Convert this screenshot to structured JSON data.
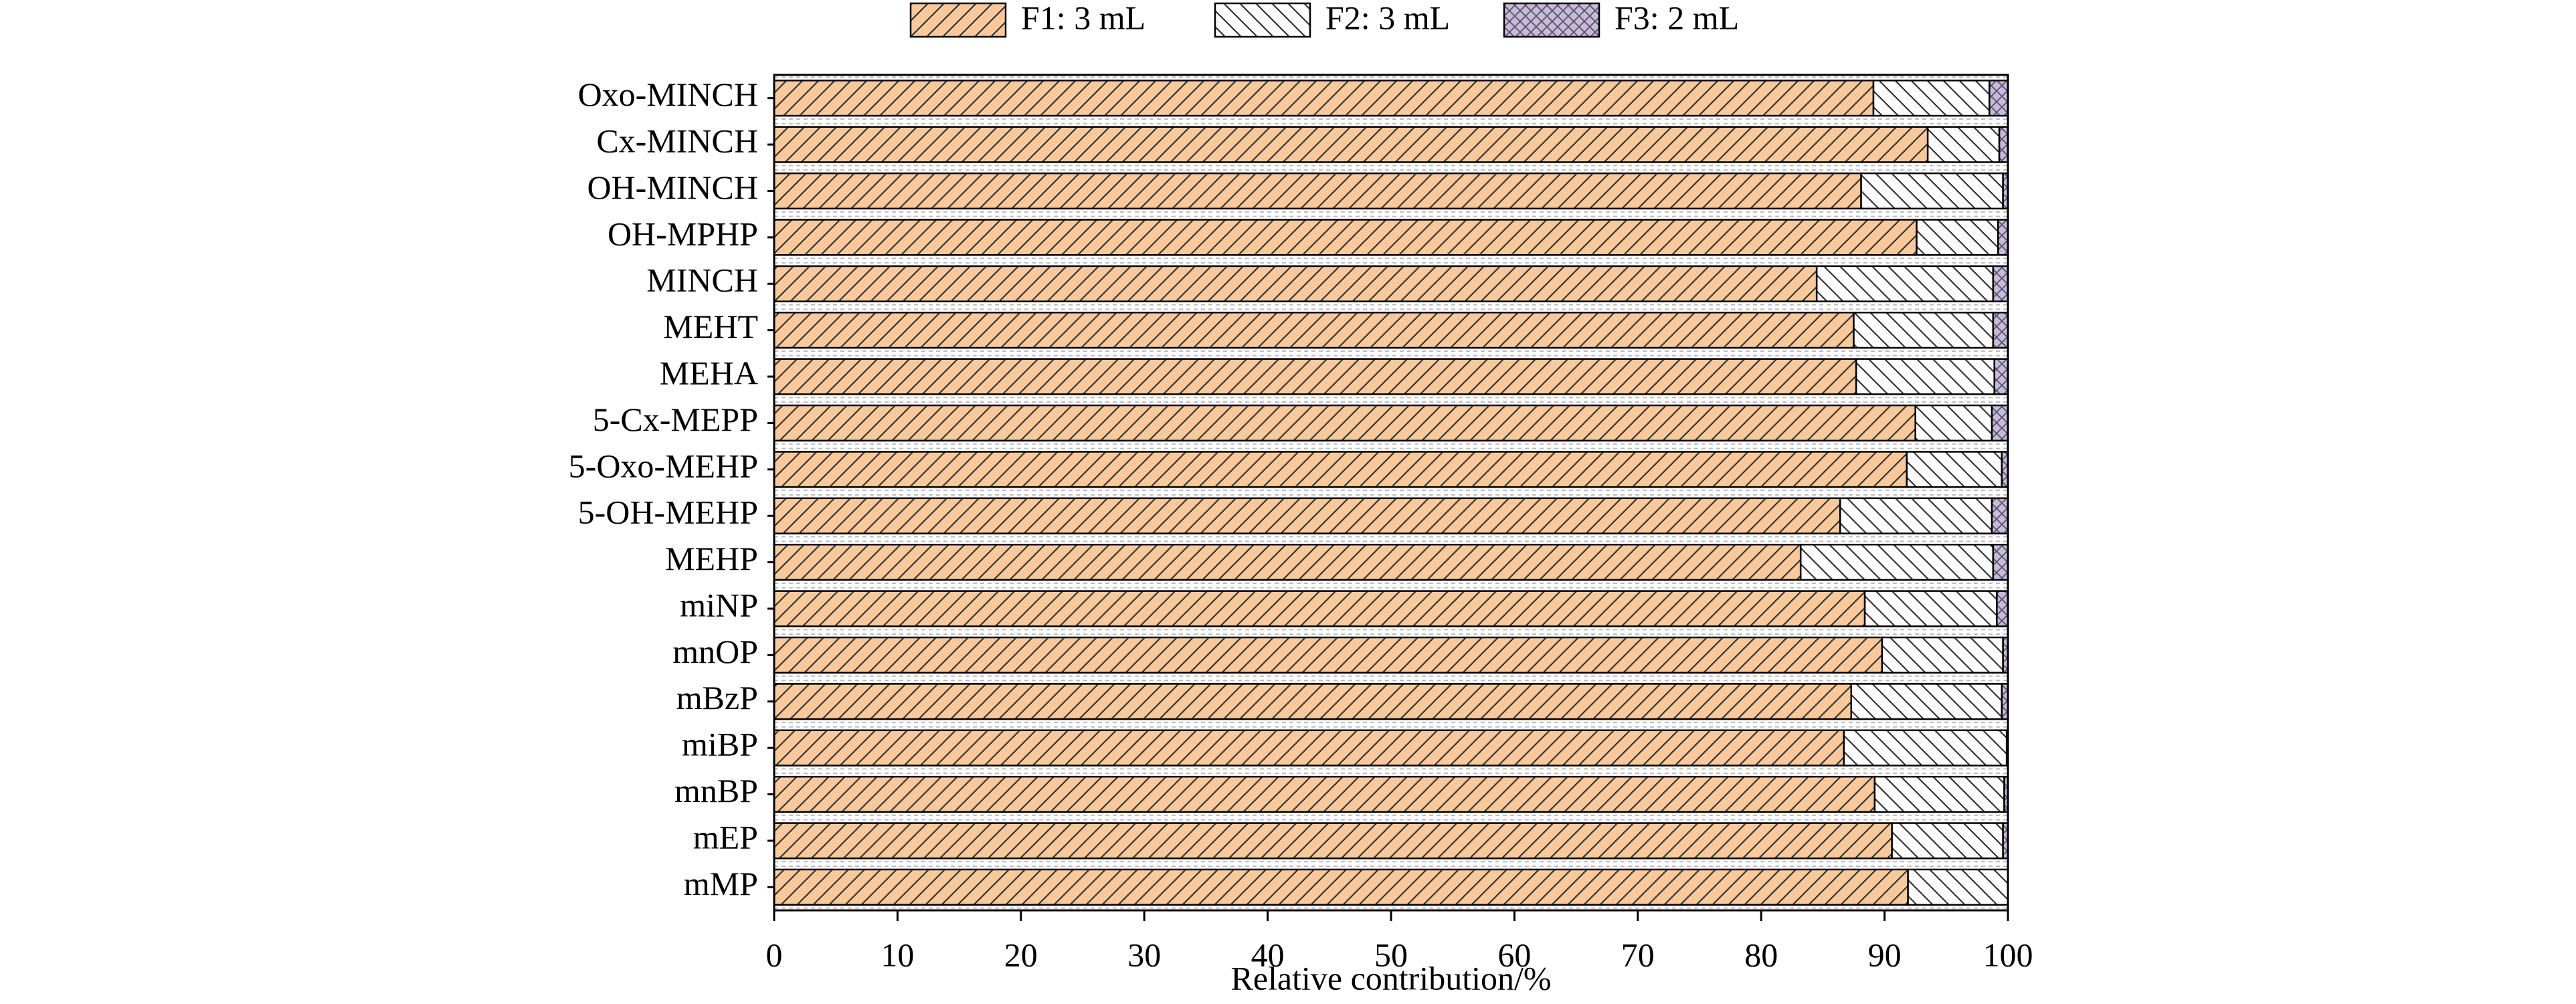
{
  "chart_data": {
    "type": "stacked_bar_horizontal",
    "x_label": "Relative contribution/%",
    "categories": [
      "Oxo-MINCH",
      "Cx-MINCH",
      "OH-MINCH",
      "OH-MPHP",
      "MINCH",
      "MEHT",
      "MEHA",
      "5-Cx-MEPP",
      "5-Oxo-MEHP",
      "5-OH-MEHP",
      "MEHP",
      "miNP",
      "mnOP",
      "mBzP",
      "miBP",
      "mnBP",
      "mEP",
      "mMP"
    ],
    "series": [
      {
        "name": "F1: 3 mL",
        "color": "#f9c99b",
        "values": [
          89.1,
          93.5,
          88.1,
          92.6,
          84.5,
          87.5,
          87.7,
          92.5,
          91.8,
          86.4,
          83.2,
          88.4,
          89.8,
          87.3,
          86.7,
          89.2,
          90.6,
          91.9
        ]
      },
      {
        "name": "F2: 3 mL",
        "color": "#ffffff",
        "values": [
          9.4,
          5.8,
          11.5,
          6.6,
          14.3,
          11.3,
          11.2,
          6.2,
          7.7,
          12.3,
          15.6,
          10.7,
          9.8,
          12.2,
          13.2,
          10.5,
          9.0,
          8.1
        ]
      },
      {
        "name": "F3: 2 mL",
        "color": "#c9b8e0",
        "values": [
          1.5,
          0.7,
          0.4,
          0.8,
          1.2,
          1.2,
          1.1,
          1.3,
          0.5,
          1.3,
          1.2,
          0.9,
          0.4,
          0.5,
          0.1,
          0.3,
          0.4,
          0.0
        ]
      }
    ],
    "xlim": [
      0,
      100
    ],
    "xticks": [
      0,
      10,
      20,
      30,
      40,
      50,
      60,
      70,
      80,
      90,
      100
    ],
    "legend": "top"
  }
}
